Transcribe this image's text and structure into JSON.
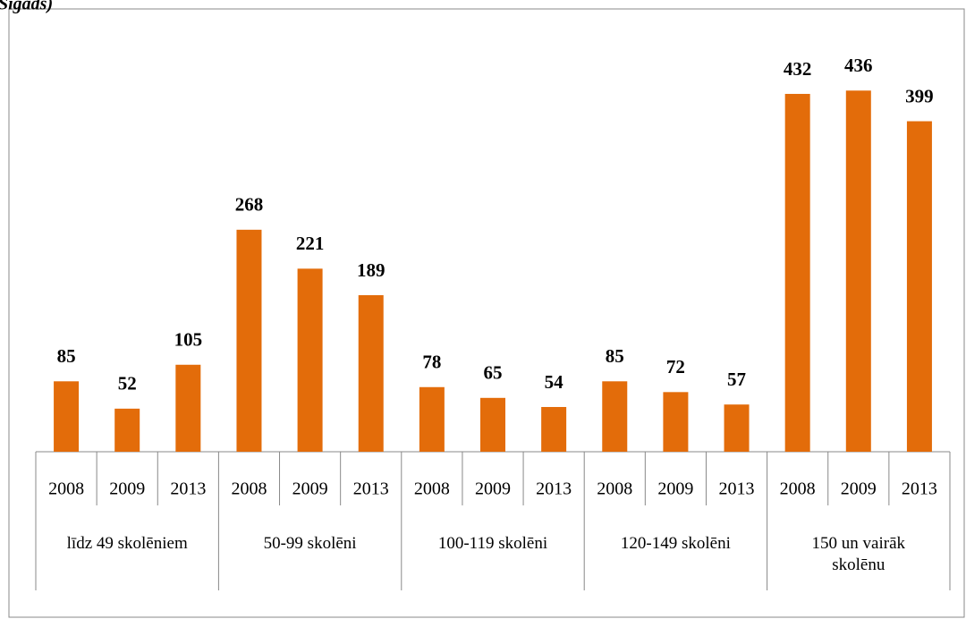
{
  "chart_data": {
    "type": "bar",
    "title": "Sigads)",
    "groups": [
      "līdz 49 skolēniem",
      "50-99 skolēni",
      "100-119 skolēni",
      "120-149 skolēni",
      "150 un vairāk skolēnu"
    ],
    "categories": [
      "2008",
      "2009",
      "2013",
      "2008",
      "2009",
      "2013",
      "2008",
      "2009",
      "2013",
      "2008",
      "2009",
      "2013",
      "2008",
      "2009",
      "2013"
    ],
    "values": [
      85,
      52,
      105,
      268,
      221,
      189,
      78,
      65,
      54,
      85,
      72,
      57,
      432,
      436,
      399
    ],
    "color": "#e36c0a",
    "ylim": [
      0,
      500
    ]
  }
}
